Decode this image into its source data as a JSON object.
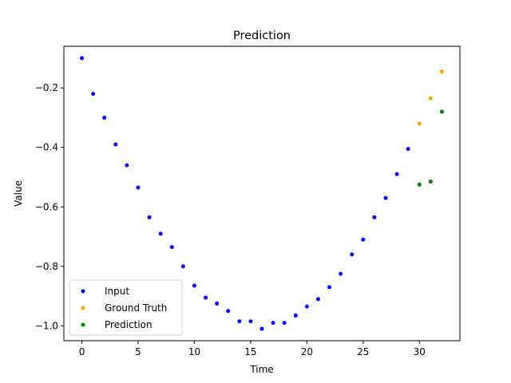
{
  "chart_data": {
    "type": "scatter",
    "title": "Prediction",
    "xlabel": "Time",
    "ylabel": "Value",
    "xlim": [
      -1.6,
      33.6
    ],
    "ylim": [
      -1.05,
      -0.06
    ],
    "xticks": [
      0,
      5,
      10,
      15,
      20,
      25,
      30
    ],
    "yticks": [
      -1.0,
      -0.8,
      -0.6,
      -0.4,
      -0.2
    ],
    "ytick_labels": [
      "−1.0",
      "−0.8",
      "−0.6",
      "−0.4",
      "−0.2"
    ],
    "grid": false,
    "legend_position": "lower-left",
    "series": [
      {
        "name": "Input",
        "color": "#0000ff",
        "x": [
          0,
          1,
          2,
          3,
          4,
          5,
          6,
          7,
          8,
          9,
          10,
          11,
          12,
          13,
          14,
          15,
          16,
          17,
          18,
          19,
          20,
          21,
          22,
          23,
          24,
          25,
          26,
          27,
          28,
          29
        ],
        "y": [
          -0.1,
          -0.22,
          -0.3,
          -0.39,
          -0.46,
          -0.535,
          -0.635,
          -0.69,
          -0.735,
          -0.8,
          -0.865,
          -0.905,
          -0.925,
          -0.95,
          -0.985,
          -0.985,
          -1.01,
          -0.99,
          -0.99,
          -0.965,
          -0.935,
          -0.91,
          -0.87,
          -0.825,
          -0.76,
          -0.71,
          -0.635,
          -0.57,
          -0.49,
          -0.405
        ]
      },
      {
        "name": "Ground Truth",
        "color": "#ffa500",
        "x": [
          30,
          31,
          32
        ],
        "y": [
          -0.32,
          -0.235,
          -0.145
        ]
      },
      {
        "name": "Prediction",
        "color": "#008000",
        "x": [
          30,
          31,
          32
        ],
        "y": [
          -0.525,
          -0.515,
          -0.28
        ]
      }
    ]
  }
}
